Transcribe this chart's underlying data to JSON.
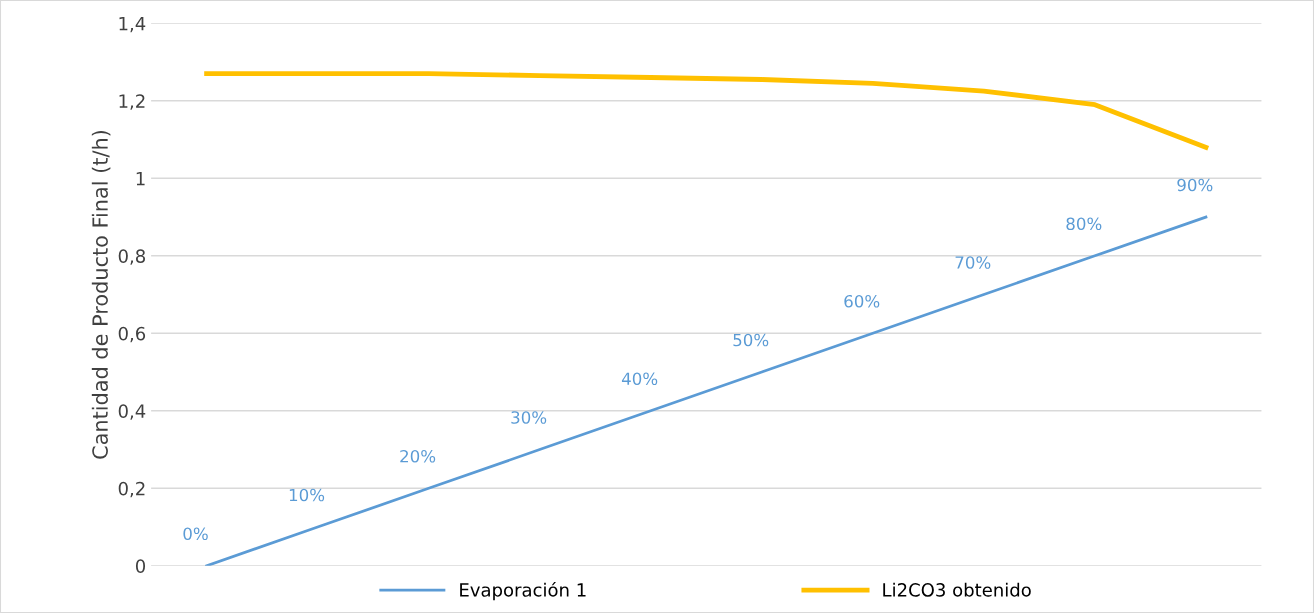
{
  "chart_data": {
    "type": "line",
    "ylabel": "Cantidad de Producto Final (t/h)",
    "categories": [
      null,
      null,
      null,
      null,
      null,
      null,
      null,
      null,
      null,
      null
    ],
    "series": [
      {
        "name": "Evaporación 1",
        "color": "#5b9bd5",
        "values": [
          0,
          0.1,
          0.2,
          0.3,
          0.4,
          0.5,
          0.6,
          0.7,
          0.8,
          0.9
        ],
        "value_labels": [
          "0%",
          "10%",
          "20%",
          "30%",
          "40%",
          "50%",
          "60%",
          "70%",
          "80%",
          "90%"
        ]
      },
      {
        "name": "Li2CO3 obtenido",
        "color": "#ffc000",
        "values": [
          1.27,
          1.27,
          1.27,
          1.265,
          1.26,
          1.255,
          1.245,
          1.225,
          1.19,
          1.08
        ]
      }
    ],
    "ylim": [
      0,
      1.4
    ],
    "yticks": [
      0,
      {
        "value": 0.2,
        "label": "0,2"
      },
      {
        "value": 0.4,
        "label": "0,4"
      },
      {
        "value": 0.6,
        "label": "0,6"
      },
      {
        "value": 0.8,
        "label": "0,8"
      },
      1,
      {
        "value": 1.2,
        "label": "1,2"
      },
      {
        "value": 1.4,
        "label": "1,4"
      }
    ],
    "grid": "y",
    "legend": "bottom",
    "tick_labels": "y",
    "marker": "none",
    "line_style": "solid"
  }
}
